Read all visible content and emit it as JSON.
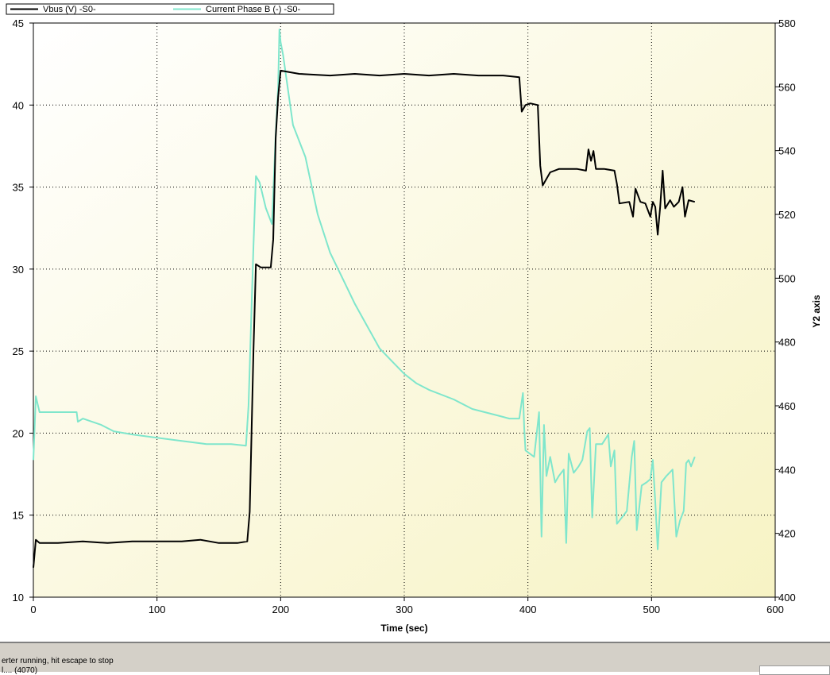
{
  "chart_data": {
    "type": "line",
    "title": "",
    "xlabel": "Time (sec)",
    "ylabel": "",
    "y2label": "Y2 axis",
    "xlim": [
      0,
      600
    ],
    "ylim": [
      10,
      45
    ],
    "y2lim": [
      400,
      580
    ],
    "x_ticks": [
      "0",
      "100",
      "200",
      "300",
      "400",
      "500",
      "600"
    ],
    "y_ticks": [
      "10",
      "15",
      "20",
      "25",
      "30",
      "35",
      "40",
      "45"
    ],
    "y2_ticks": [
      "400",
      "420",
      "440",
      "460",
      "480",
      "500",
      "520",
      "540",
      "560",
      "580"
    ],
    "grid": true,
    "legend_position": "top-left",
    "series": [
      {
        "name": "Vbus (V) -S0-",
        "axis": "y",
        "color": "#000000",
        "points": [
          [
            0,
            11.8
          ],
          [
            2,
            13.5
          ],
          [
            5,
            13.3
          ],
          [
            20,
            13.3
          ],
          [
            40,
            13.4
          ],
          [
            60,
            13.3
          ],
          [
            80,
            13.4
          ],
          [
            100,
            13.4
          ],
          [
            120,
            13.4
          ],
          [
            135,
            13.5
          ],
          [
            150,
            13.3
          ],
          [
            165,
            13.3
          ],
          [
            173,
            13.4
          ],
          [
            175,
            15.2
          ],
          [
            178,
            25
          ],
          [
            180,
            30.3
          ],
          [
            184,
            30.1
          ],
          [
            192,
            30.1
          ],
          [
            194,
            31.8
          ],
          [
            196,
            38
          ],
          [
            198,
            40.5
          ],
          [
            200,
            42.1
          ],
          [
            215,
            41.9
          ],
          [
            240,
            41.8
          ],
          [
            260,
            41.9
          ],
          [
            280,
            41.8
          ],
          [
            300,
            41.9
          ],
          [
            320,
            41.8
          ],
          [
            340,
            41.9
          ],
          [
            360,
            41.8
          ],
          [
            380,
            41.8
          ],
          [
            393,
            41.7
          ],
          [
            395,
            39.6
          ],
          [
            398,
            40
          ],
          [
            402,
            40.1
          ],
          [
            408,
            40
          ],
          [
            410,
            36.3
          ],
          [
            412,
            35.1
          ],
          [
            418,
            35.9
          ],
          [
            425,
            36.1
          ],
          [
            440,
            36.1
          ],
          [
            447,
            36
          ],
          [
            449,
            37.3
          ],
          [
            451,
            36.6
          ],
          [
            453,
            37.2
          ],
          [
            455,
            36.1
          ],
          [
            462,
            36.1
          ],
          [
            470,
            36
          ],
          [
            472,
            35.2
          ],
          [
            474,
            34
          ],
          [
            482,
            34.1
          ],
          [
            485,
            33.2
          ],
          [
            487,
            34.9
          ],
          [
            491,
            34.1
          ],
          [
            495,
            34
          ],
          [
            499,
            33.2
          ],
          [
            501,
            34.1
          ],
          [
            503,
            33.8
          ],
          [
            505,
            32.1
          ],
          [
            507,
            33.8
          ],
          [
            509,
            36
          ],
          [
            511,
            33.7
          ],
          [
            515,
            34.2
          ],
          [
            518,
            33.8
          ],
          [
            522,
            34.1
          ],
          [
            525,
            35
          ],
          [
            527,
            33.2
          ],
          [
            530,
            34.2
          ],
          [
            535,
            34.1
          ]
        ]
      },
      {
        "name": "Current Phase B (-) -S0-",
        "axis": "y2",
        "color": "#7fe6cc",
        "points": [
          [
            0,
            443
          ],
          [
            2,
            463
          ],
          [
            5,
            458
          ],
          [
            20,
            458
          ],
          [
            35,
            458
          ],
          [
            36,
            455
          ],
          [
            40,
            456
          ],
          [
            55,
            454
          ],
          [
            65,
            452
          ],
          [
            80,
            451
          ],
          [
            100,
            450
          ],
          [
            120,
            449
          ],
          [
            140,
            448
          ],
          [
            160,
            448
          ],
          [
            172,
            447.5
          ],
          [
            174,
            460
          ],
          [
            178,
            510
          ],
          [
            180,
            532
          ],
          [
            183,
            530
          ],
          [
            188,
            522
          ],
          [
            193,
            517
          ],
          [
            196,
            545
          ],
          [
            198,
            560
          ],
          [
            199,
            578
          ],
          [
            200,
            574
          ],
          [
            202,
            570
          ],
          [
            210,
            548
          ],
          [
            220,
            538
          ],
          [
            230,
            520
          ],
          [
            240,
            508
          ],
          [
            250,
            500
          ],
          [
            260,
            492
          ],
          [
            270,
            485
          ],
          [
            280,
            478
          ],
          [
            290,
            474
          ],
          [
            300,
            470
          ],
          [
            310,
            467
          ],
          [
            320,
            465
          ],
          [
            340,
            462
          ],
          [
            355,
            459
          ],
          [
            365,
            458
          ],
          [
            375,
            457
          ],
          [
            385,
            456
          ],
          [
            393,
            456
          ],
          [
            396,
            464
          ],
          [
            397,
            453
          ],
          [
            398,
            446
          ],
          [
            405,
            444
          ],
          [
            409,
            458
          ],
          [
            411,
            419
          ],
          [
            413,
            454
          ],
          [
            415,
            438
          ],
          [
            418,
            444
          ],
          [
            422,
            436
          ],
          [
            425,
            438
          ],
          [
            429,
            440
          ],
          [
            431,
            417
          ],
          [
            433,
            445
          ],
          [
            437,
            439
          ],
          [
            441,
            441
          ],
          [
            444,
            443
          ],
          [
            448,
            452
          ],
          [
            450,
            453
          ],
          [
            452,
            425
          ],
          [
            455,
            448
          ],
          [
            460,
            448
          ],
          [
            465,
            451
          ],
          [
            467,
            441
          ],
          [
            470,
            446
          ],
          [
            472,
            423
          ],
          [
            476,
            425
          ],
          [
            480,
            427
          ],
          [
            484,
            444
          ],
          [
            486,
            449
          ],
          [
            488,
            421
          ],
          [
            492,
            435
          ],
          [
            496,
            436
          ],
          [
            499,
            437
          ],
          [
            501,
            443
          ],
          [
            503,
            430
          ],
          [
            505,
            415
          ],
          [
            508,
            436
          ],
          [
            512,
            438
          ],
          [
            517,
            440
          ],
          [
            520,
            419
          ],
          [
            523,
            424
          ],
          [
            526,
            427
          ],
          [
            528,
            442
          ],
          [
            530,
            443
          ],
          [
            532,
            441
          ],
          [
            535,
            444
          ]
        ]
      }
    ]
  },
  "status": {
    "line1": "erter running, hit escape to stop",
    "line2": "l.... (4070)"
  }
}
